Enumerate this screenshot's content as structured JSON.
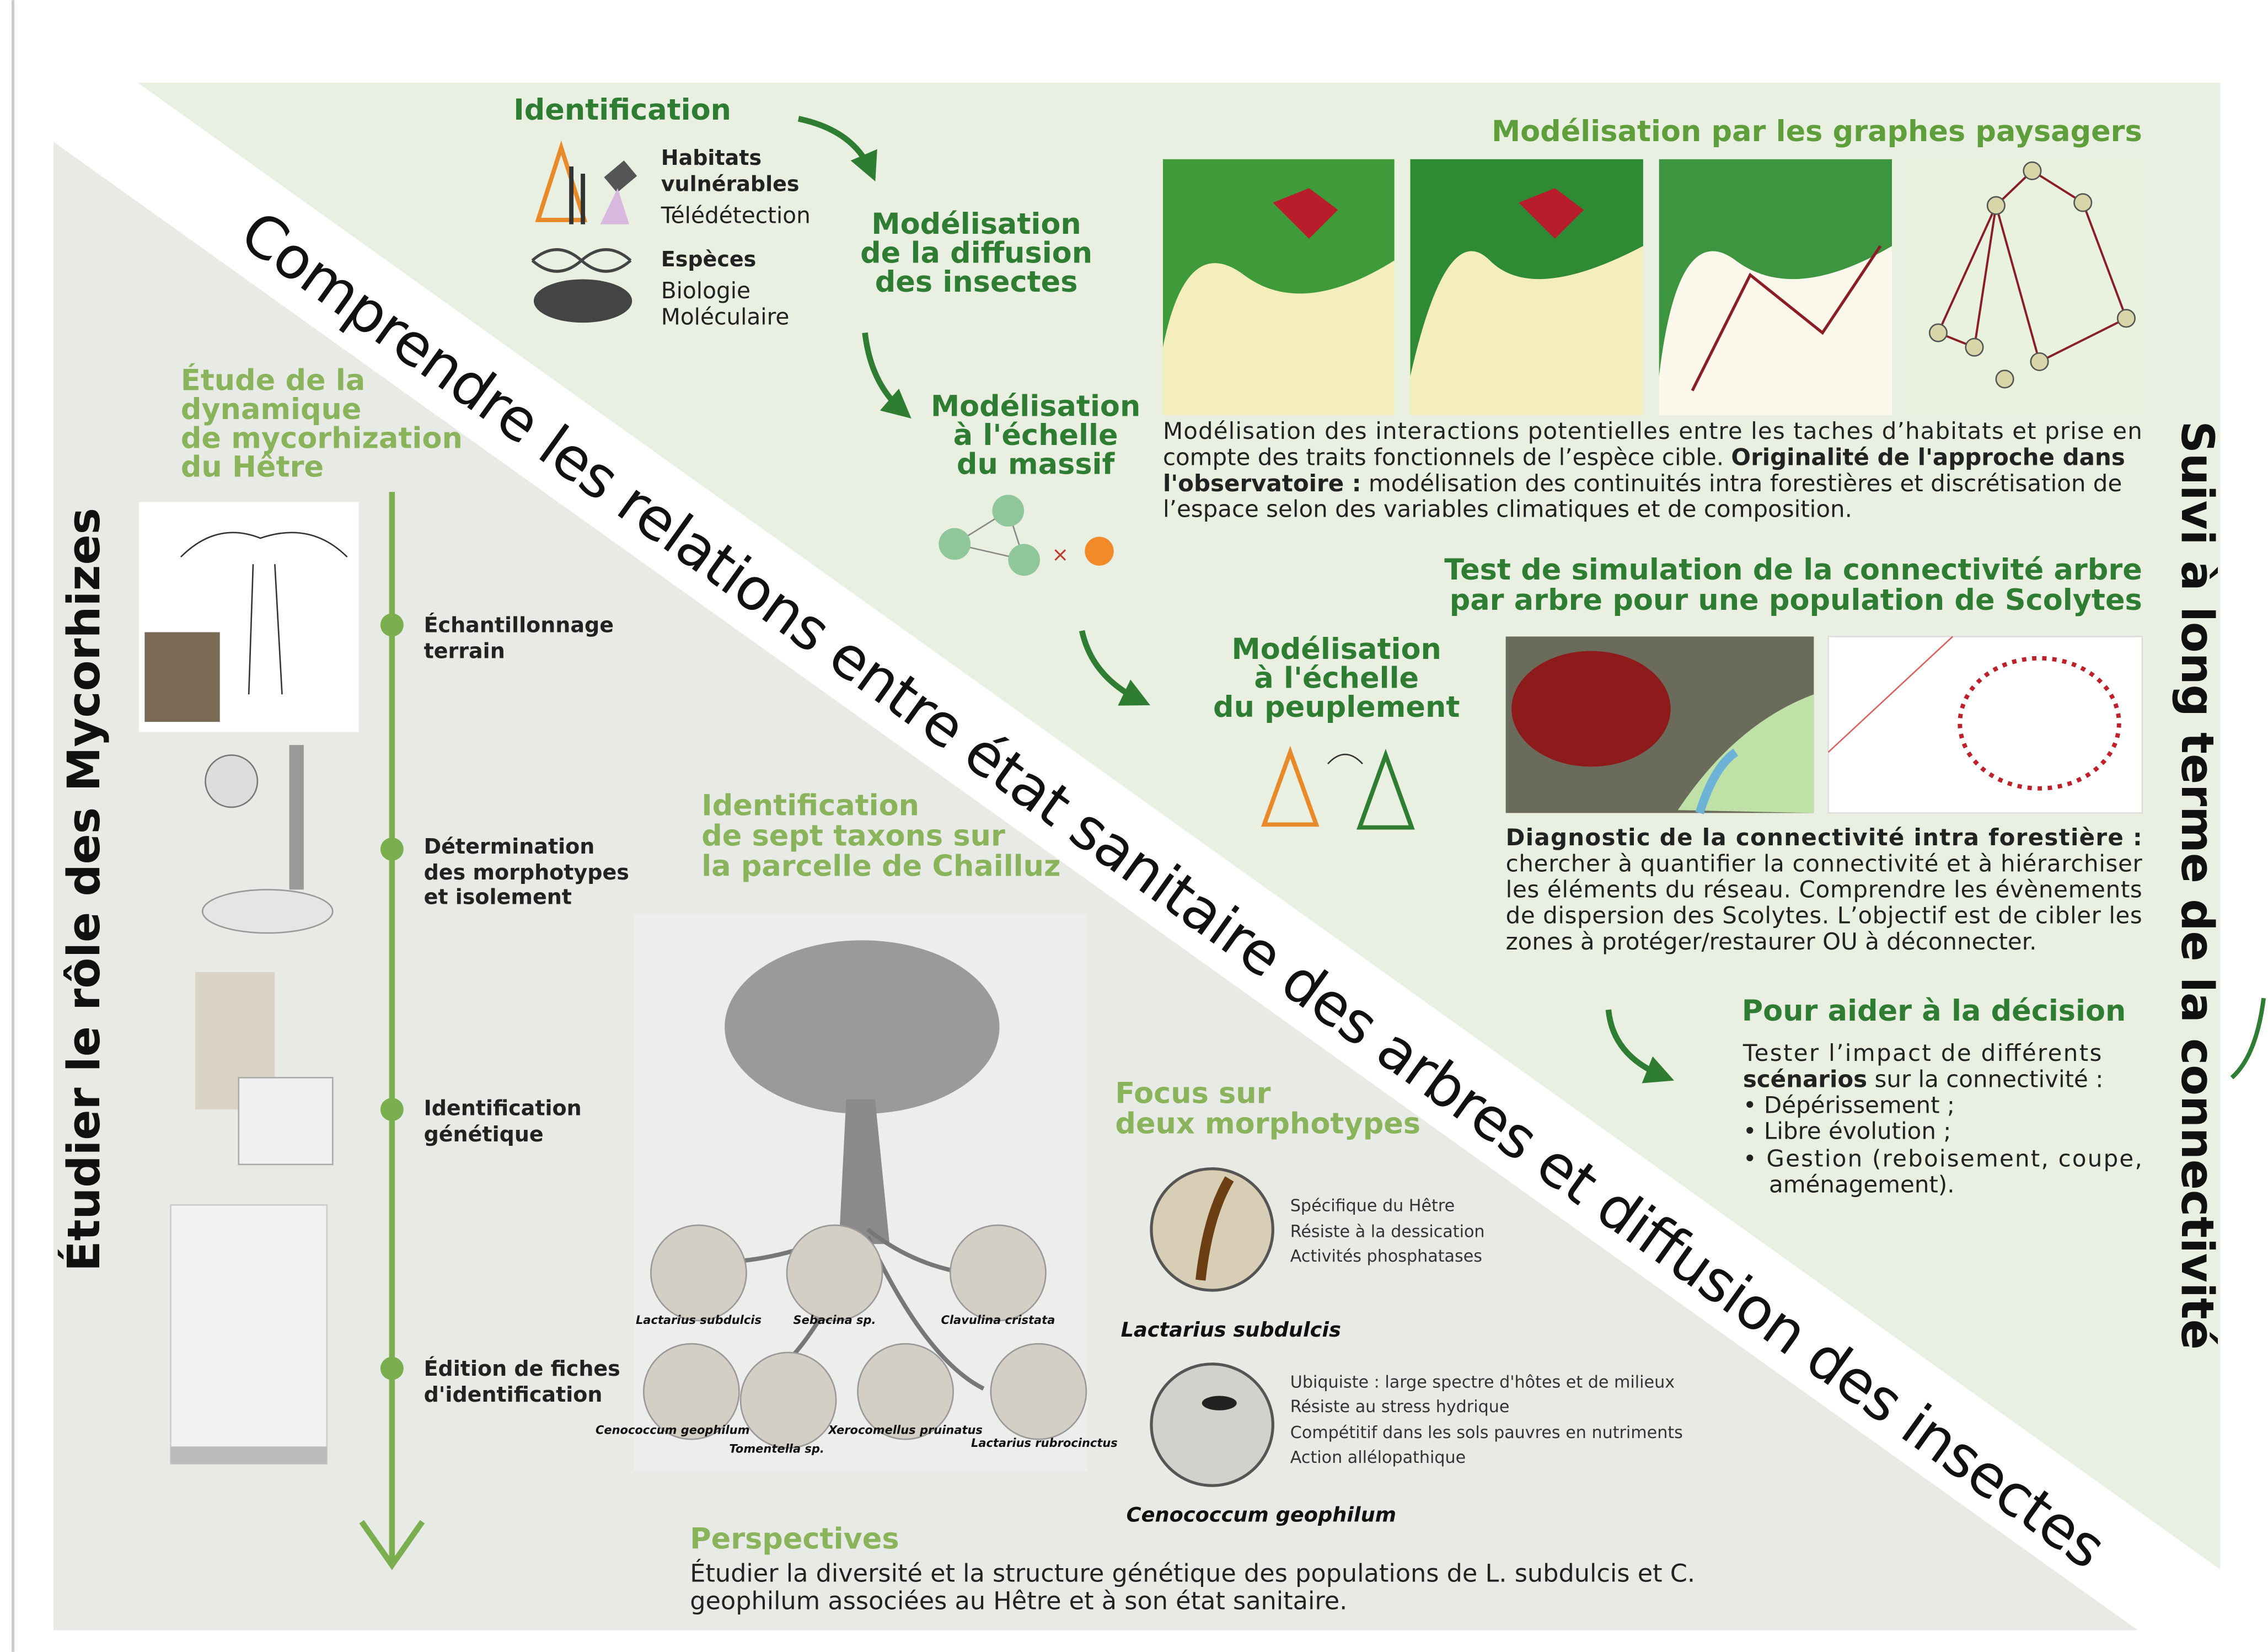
{
  "diagonal_title": "Comprendre les relations entre état sanitaire des arbres et diffusion des insectes",
  "left_title": "Étudier le rôle des Mycorhizes",
  "right_title": "Suivi à long terme de la connectivité",
  "identification": {
    "title": "Identification",
    "habitats": [
      "Habitats",
      "vulnérables"
    ],
    "teledetection": "Télédétection",
    "especes": "Espèces",
    "biologie": [
      "Biologie",
      "Moléculaire"
    ]
  },
  "modelisation_diffusion": [
    "Modélisation",
    "de la diffusion",
    "des insectes"
  ],
  "modelisation_massif": [
    "Modélisation",
    "à l'échelle",
    "du massif"
  ],
  "modelisation_peuplement": [
    "Modélisation",
    "à l'échelle",
    "du peuplement"
  ],
  "graphes": {
    "title": "Modélisation par les graphes paysagers",
    "lines": [
      "Modélisation des interactions potentielles entre les taches d’habitats et prise en",
      "compte des traits fonctionnels de l’espèce cible. ",
      "Originalité de l'approche dans",
      "l'observatoire :",
      " modélisation des continuités intra forestières et discrétisation de",
      "l’espace selon des variables climatiques et de composition."
    ]
  },
  "simulation": {
    "title": [
      "Test de simulation de la connectivité arbre",
      "par arbre  pour une population de Scolytes"
    ],
    "lines": [
      "Diagnostic de la connectivité intra forestière :",
      "chercher à quantifier la connectivité et à hiérarchiser",
      "les éléments du réseau. Comprendre les évènements",
      "de dispersion des Scolytes. L’objectif est de cibler les",
      "zones à protéger/restaurer OU à déconnecter."
    ]
  },
  "decision": {
    "title": "Pour aider à la décision",
    "lines": [
      "Tester l’impact de différents",
      "scénarios",
      " sur la connectivité :",
      "• Dépérissement ;",
      "• Libre évolution ;",
      "• Gestion (reboisement, coupe,",
      "aménagement)."
    ]
  },
  "mycorhization": {
    "title": [
      "Étude de la",
      "dynamique",
      "de mycorhization",
      "du Hêtre"
    ],
    "steps": [
      [
        "Échantillonnage",
        "terrain"
      ],
      [
        "Détermination",
        "des morphotypes",
        "et isolement"
      ],
      [
        "Identification",
        "génétique"
      ],
      [
        "Édition de fiches",
        "d'identification"
      ]
    ]
  },
  "taxons": {
    "title": [
      "Identification",
      "de sept taxons sur",
      "la parcelle de Chailluz"
    ],
    "labels": [
      "Lactarius subdulcis",
      "Sebacina sp.",
      "Clavulina cristata",
      "Cenococcum geophilum",
      "Tomentella sp.",
      "Xerocomellus pruinatus",
      "Lactarius rubrocinctus"
    ]
  },
  "focus": {
    "title": [
      "Focus sur",
      "deux morphotypes"
    ],
    "lactarius": {
      "traits": [
        "Spécifique du Hêtre",
        "Résiste à la dessication",
        "Activités phosphatases"
      ],
      "name": "Lactarius subdulcis"
    },
    "cenococcum": {
      "traits": [
        "Ubiquiste : large spectre d'hôtes et de milieux",
        "Résiste au stress hydrique",
        "Compétitif dans les sols pauvres en nutriments",
        "Action allélopathique"
      ],
      "name": "Cenococcum geophilum"
    }
  },
  "perspectives": {
    "title": "Perspectives",
    "lines": [
      "Étudier la diversité et la structure génétique des populations de L. subdulcis et C.",
      "geophilum associées au Hêtre et à son état sanitaire."
    ]
  }
}
